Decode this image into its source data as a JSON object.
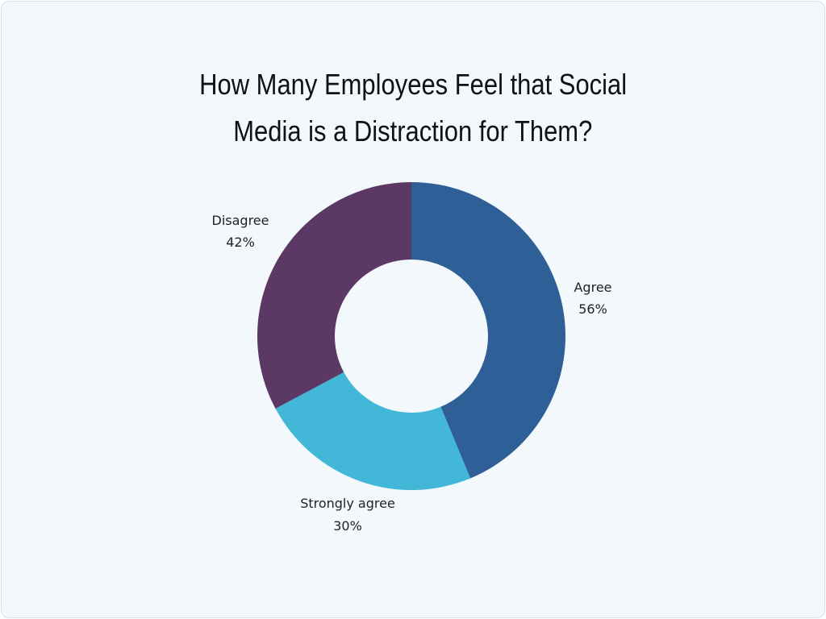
{
  "chart_data": {
    "type": "pie",
    "donut": true,
    "title_lines": [
      "How Many Employees Feel that Social",
      "Media is a Distraction for Them?"
    ],
    "slices": [
      {
        "label": "Agree",
        "value": 56,
        "value_label": "56%",
        "color": "#2e5f96"
      },
      {
        "label": "Strongly agree",
        "value": 30,
        "value_label": "30%",
        "color": "#42b7d7"
      },
      {
        "label": "Disagree",
        "value": 42,
        "value_label": "42%",
        "color": "#5c3864"
      }
    ],
    "legend": "none",
    "labels": "outside"
  },
  "colors": {
    "background": "#f3f8fd",
    "border": "#cfe7ef"
  }
}
